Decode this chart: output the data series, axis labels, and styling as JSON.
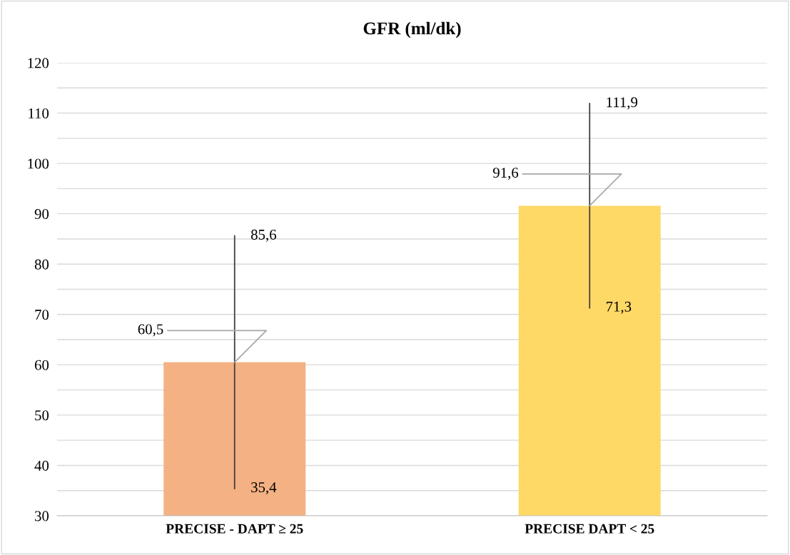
{
  "chart_data": {
    "type": "bar",
    "title": "GFR (ml/dk)",
    "categories": [
      "PRECISE - DAPT ≥ 25",
      "PRECISE DAPT < 25"
    ],
    "values": [
      60.5,
      91.6
    ],
    "colors": [
      "#f4b183",
      "#ffd966"
    ],
    "errors": [
      [
        35.4,
        85.6
      ],
      [
        71.3,
        111.9
      ]
    ],
    "value_labels": [
      "60,5",
      "91,6"
    ],
    "annotations": [
      {
        "text": "85,6",
        "x": "PRECISE - DAPT ≥ 25",
        "y": 85.6
      },
      {
        "text": "35,4",
        "x": "PRECISE - DAPT ≥ 25",
        "y": 35.4
      },
      {
        "text": "111,9",
        "x": "PRECISE DAPT < 25",
        "y": 111.9
      },
      {
        "text": "71,3",
        "x": "PRECISE DAPT < 25",
        "y": 71.3
      }
    ],
    "ylim": [
      30,
      120
    ],
    "yticks": [
      30,
      {
        "value": 35,
        "label": null
      },
      40,
      {
        "value": 45,
        "label": null
      },
      50,
      {
        "value": 55,
        "label": null
      },
      60,
      {
        "value": 65,
        "label": null
      },
      70,
      {
        "value": 75,
        "label": null
      },
      80,
      {
        "value": 85,
        "label": null
      },
      90,
      {
        "value": 95,
        "label": null
      },
      100,
      {
        "value": 105,
        "label": null
      },
      110,
      {
        "value": 115,
        "label": null
      },
      120
    ],
    "grid": "y"
  }
}
